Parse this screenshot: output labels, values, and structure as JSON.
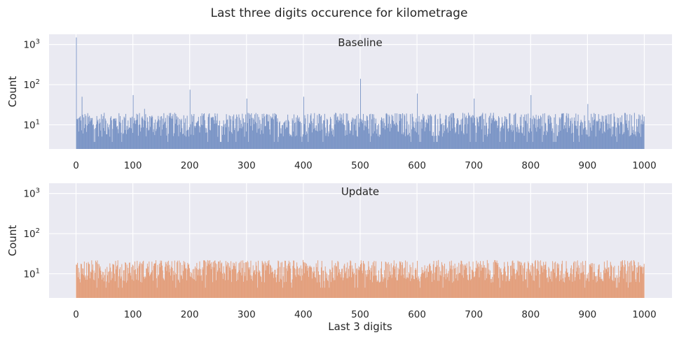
{
  "chart_data": {
    "title": "Last three digits occurence for kilometrage",
    "type": "bar",
    "subtype": "histogram",
    "bin_width": 1,
    "x_range": [
      0,
      999
    ],
    "xticks": [
      0,
      100,
      200,
      300,
      400,
      500,
      600,
      700,
      800,
      900,
      1000
    ],
    "xlabel": "Last 3 digits",
    "yscale": "log",
    "ylim": [
      2.5,
      1800
    ],
    "grid": true,
    "sharey": true,
    "panels": [
      {
        "title": "Baseline",
        "ylabel": "Count",
        "color": "#7b95c6",
        "typical_count_range": [
          5,
          20
        ],
        "spikes": [
          {
            "x": 0,
            "count": 1500
          },
          {
            "x": 10,
            "count": 50
          },
          {
            "x": 100,
            "count": 55
          },
          {
            "x": 120,
            "count": 25
          },
          {
            "x": 200,
            "count": 75
          },
          {
            "x": 300,
            "count": 45
          },
          {
            "x": 400,
            "count": 50
          },
          {
            "x": 500,
            "count": 140
          },
          {
            "x": 600,
            "count": 60
          },
          {
            "x": 700,
            "count": 45
          },
          {
            "x": 800,
            "count": 55
          },
          {
            "x": 900,
            "count": 33
          }
        ]
      },
      {
        "title": "Update",
        "ylabel": "Count",
        "color": "#e39f7c",
        "typical_count_range": [
          6,
          22
        ],
        "spikes": []
      }
    ]
  },
  "text": {
    "title": "Last three digits occurence for kilometrage",
    "xlabel": "Last 3 digits",
    "panel1_title": "Baseline",
    "panel2_title": "Update",
    "ylabel1": "Count",
    "ylabel2": "Count"
  }
}
